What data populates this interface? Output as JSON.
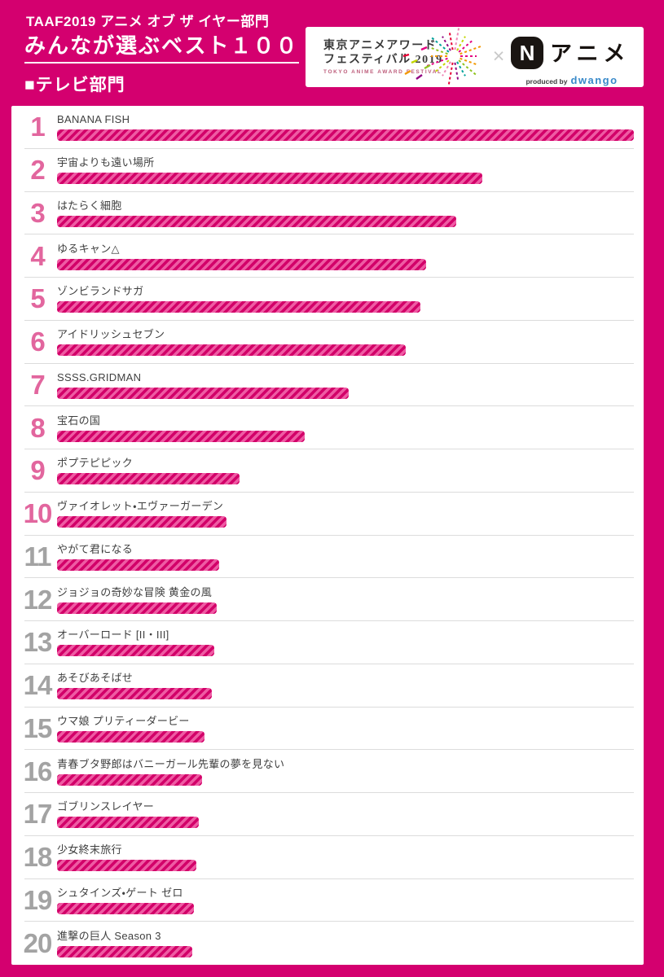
{
  "page": {
    "bg_color": "#d4006f",
    "title_small": "TAAF2019 アニメ オブ ザ イヤー部門",
    "title_large": "みんなが選ぶベスト１００",
    "section_label": "■テレビ部門"
  },
  "logo_box": {
    "taaf_line1": "東京アニメアワード",
    "taaf_line2": "フェスティバル 2019",
    "taaf_line3": "TOKYO ANIME AWARD FESTIVAL",
    "cross": "×",
    "n_letter": "N",
    "n_anime_label": "アニメ",
    "produced_by": "produced by",
    "dwango": "dwango",
    "dwango_color": "#3789c9",
    "burst_colors": [
      "#e4007f",
      "#f39800",
      "#8fc31f",
      "#00a29a",
      "#920783",
      "#e60033",
      "#ef87b5",
      "#c3d600"
    ]
  },
  "ranking": {
    "rank_pink": "#e2669e",
    "rank_gray": "#a3a3a3",
    "bar_dark": "#d20069",
    "bar_light": "#ee5ba3",
    "items": [
      {
        "rank": 1,
        "title": "BANANA FISH",
        "percent": 100
      },
      {
        "rank": 2,
        "title": "宇宙よりも遠い場所",
        "percent": 73.7
      },
      {
        "rank": 3,
        "title": "はたらく細胞",
        "percent": 69.2
      },
      {
        "rank": 4,
        "title": "ゆるキャン△",
        "percent": 64.0
      },
      {
        "rank": 5,
        "title": "ゾンビランドサガ",
        "percent": 63.0
      },
      {
        "rank": 6,
        "title": "アイドリッシュセブン",
        "percent": 60.5
      },
      {
        "rank": 7,
        "title": "SSSS.GRIDMAN",
        "percent": 50.5
      },
      {
        "rank": 8,
        "title": "宝石の国",
        "percent": 42.9
      },
      {
        "rank": 9,
        "title": "ポプテピピック",
        "percent": 31.6
      },
      {
        "rank": 10,
        "title": "ヴァイオレット・エヴァーガーデン",
        "percent": 29.4
      },
      {
        "rank": 11,
        "title": "やがて君になる",
        "percent": 28.1
      },
      {
        "rank": 12,
        "title": "ジョジョの奇妙な冒険 黄金の風",
        "percent": 27.7
      },
      {
        "rank": 13,
        "title": "オーバーロード [II・III]",
        "percent": 27.3
      },
      {
        "rank": 14,
        "title": "あそびあそばせ",
        "percent": 26.8
      },
      {
        "rank": 15,
        "title": "ウマ娘 プリティーダービー",
        "percent": 25.6
      },
      {
        "rank": 16,
        "title": "青春ブタ野郎はバニーガール先輩の夢を見ない",
        "percent": 25.1
      },
      {
        "rank": 17,
        "title": "ゴブリンスレイヤー",
        "percent": 24.6
      },
      {
        "rank": 18,
        "title": "少女終末旅行",
        "percent": 24.1
      },
      {
        "rank": 19,
        "title": "シュタインズ・ゲート ゼロ",
        "percent": 23.7
      },
      {
        "rank": 20,
        "title": "進撃の巨人 Season 3",
        "percent": 23.4
      }
    ]
  },
  "chart_data": {
    "type": "bar",
    "orientation": "horizontal",
    "title": "TAAF2019 アニメ オブ ザ イヤー部門 みんなが選ぶベスト１００ テレビ部門",
    "categories": [
      "BANANA FISH",
      "宇宙よりも遠い場所",
      "はたらく細胞",
      "ゆるキャン△",
      "ゾンビランドサガ",
      "アイドリッシュセブン",
      "SSSS.GRIDMAN",
      "宝石の国",
      "ポプテピピック",
      "ヴァイオレット・エヴァーガーデン",
      "やがて君になる",
      "ジョジョの奇妙な冒険 黄金の風",
      "オーバーロード [II・III]",
      "あそびあそばせ",
      "ウマ娘 プリティーダービー",
      "青春ブタ野郎はバニーガール先輩の夢を見ない",
      "ゴブリンスレイヤー",
      "少女終末旅行",
      "シュタインズ・ゲート ゼロ",
      "進撃の巨人 Season 3"
    ],
    "ranks": [
      1,
      2,
      3,
      4,
      5,
      6,
      7,
      8,
      9,
      10,
      11,
      12,
      13,
      14,
      15,
      16,
      17,
      18,
      19,
      20
    ],
    "values": [
      100,
      73.7,
      69.2,
      64.0,
      63.0,
      60.5,
      50.5,
      42.9,
      31.6,
      29.4,
      28.1,
      27.7,
      27.3,
      26.8,
      25.6,
      25.1,
      24.6,
      24.1,
      23.7,
      23.4
    ],
    "value_unit": "percent_of_longest_bar",
    "value_labels_shown": false,
    "axis_shown": false,
    "grid": false,
    "legend": "none",
    "bar_style": "diagonal-striped pink",
    "xlim": [
      0,
      100
    ]
  }
}
